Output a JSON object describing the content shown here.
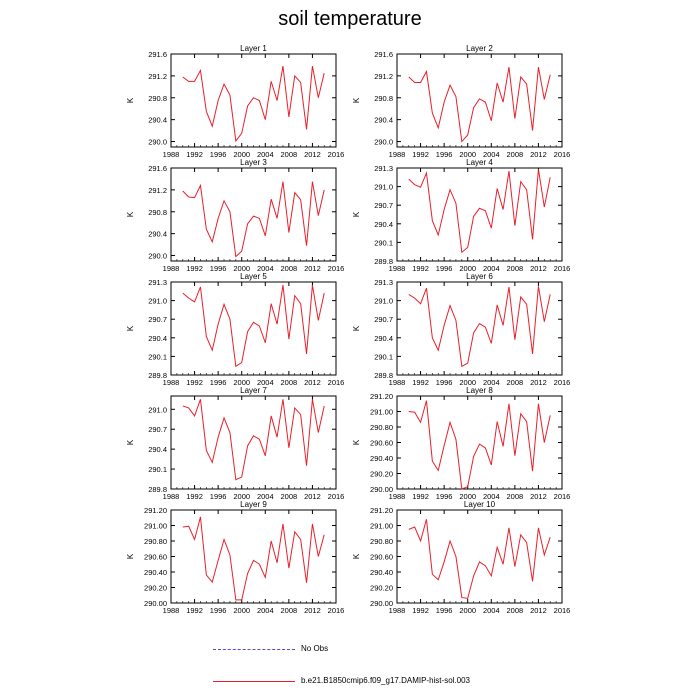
{
  "page": {
    "title": "soil temperature"
  },
  "legend": {
    "items": [
      {
        "label": "No Obs",
        "style": "dashed",
        "color": "#5a4cc2"
      },
      {
        "label": "b.e21.B1850cmip6.f09_g17.DAMIP-hist-sol.003",
        "style": "solid",
        "color": "#e8202a"
      }
    ]
  },
  "colors": {
    "series": "#e8202a",
    "frame": "#000000"
  },
  "chart_data": [
    {
      "type": "line",
      "title": "Layer 1",
      "xlabel": "",
      "ylabel": "K",
      "xlim": [
        1988,
        2016
      ],
      "ylim": [
        289.9,
        291.6
      ],
      "xticks": [
        1988,
        1992,
        1996,
        2000,
        2004,
        2008,
        2012,
        2016
      ],
      "ytick_labels": [
        "290.0",
        "290.4",
        "290.8",
        "291.2",
        "291.6"
      ],
      "x": [
        1990,
        1991,
        1992,
        1993,
        1994,
        1995,
        1996,
        1997,
        1998,
        1999,
        2000,
        2001,
        2002,
        2003,
        2004,
        2005,
        2006,
        2007,
        2008,
        2009,
        2010,
        2011,
        2012,
        2013,
        2014
      ],
      "series": [
        {
          "values": [
            291.18,
            291.1,
            291.1,
            291.3,
            290.55,
            290.28,
            290.75,
            291.05,
            290.85,
            290.01,
            290.15,
            290.65,
            290.8,
            290.75,
            290.4,
            291.1,
            290.75,
            291.38,
            290.45,
            291.2,
            291.08,
            290.22,
            291.38,
            290.8,
            291.25
          ]
        }
      ]
    },
    {
      "type": "line",
      "title": "Layer 2",
      "xlabel": "",
      "ylabel": "K",
      "xlim": [
        1988,
        2016
      ],
      "ylim": [
        289.9,
        291.6
      ],
      "xticks": [
        1988,
        1992,
        1996,
        2000,
        2004,
        2008,
        2012,
        2016
      ],
      "ytick_labels": [
        "290.0",
        "290.4",
        "290.8",
        "291.2",
        "291.6"
      ],
      "x": [
        1990,
        1991,
        1992,
        1993,
        1994,
        1995,
        1996,
        1997,
        1998,
        1999,
        2000,
        2001,
        2002,
        2003,
        2004,
        2005,
        2006,
        2007,
        2008,
        2009,
        2010,
        2011,
        2012,
        2013,
        2014
      ],
      "series": [
        {
          "values": [
            291.18,
            291.08,
            291.08,
            291.28,
            290.52,
            290.25,
            290.72,
            291.03,
            290.82,
            290.0,
            290.12,
            290.62,
            290.78,
            290.72,
            290.38,
            291.07,
            290.72,
            291.36,
            290.42,
            291.18,
            291.05,
            290.2,
            291.36,
            290.77,
            291.22
          ]
        }
      ]
    },
    {
      "type": "line",
      "title": "Layer 3",
      "xlabel": "",
      "ylabel": "K",
      "xlim": [
        1988,
        2016
      ],
      "ylim": [
        289.9,
        291.6
      ],
      "xticks": [
        1988,
        1992,
        1996,
        2000,
        2004,
        2008,
        2012,
        2016
      ],
      "ytick_labels": [
        "290.0",
        "290.4",
        "290.8",
        "291.2",
        "291.6"
      ],
      "x": [
        1990,
        1991,
        1992,
        1993,
        1994,
        1995,
        1996,
        1997,
        1998,
        1999,
        2000,
        2001,
        2002,
        2003,
        2004,
        2005,
        2006,
        2007,
        2008,
        2009,
        2010,
        2011,
        2012,
        2013,
        2014
      ],
      "series": [
        {
          "values": [
            291.18,
            291.07,
            291.06,
            291.28,
            290.48,
            290.25,
            290.68,
            291.0,
            290.8,
            289.98,
            290.08,
            290.58,
            290.72,
            290.68,
            290.36,
            291.03,
            290.68,
            291.35,
            290.42,
            291.15,
            291.02,
            290.18,
            291.35,
            290.73,
            291.2
          ]
        }
      ]
    },
    {
      "type": "line",
      "title": "Layer 4",
      "xlabel": "",
      "ylabel": "K",
      "xlim": [
        1988,
        2016
      ],
      "ylim": [
        289.8,
        291.3
      ],
      "xticks": [
        1988,
        1992,
        1996,
        2000,
        2004,
        2008,
        2012,
        2016
      ],
      "ytick_labels": [
        "289.8",
        "290.1",
        "290.4",
        "290.7",
        "291.0",
        "291.3"
      ],
      "x": [
        1990,
        1991,
        1992,
        1993,
        1994,
        1995,
        1996,
        1997,
        1998,
        1999,
        2000,
        2001,
        2002,
        2003,
        2004,
        2005,
        2006,
        2007,
        2008,
        2009,
        2010,
        2011,
        2012,
        2013,
        2014
      ],
      "series": [
        {
          "values": [
            291.12,
            291.03,
            290.99,
            291.22,
            290.45,
            290.22,
            290.63,
            290.95,
            290.73,
            289.94,
            290.02,
            290.52,
            290.65,
            290.61,
            290.33,
            290.97,
            290.63,
            291.25,
            290.37,
            291.08,
            290.95,
            290.15,
            291.28,
            290.67,
            291.15
          ]
        }
      ]
    },
    {
      "type": "line",
      "title": "Layer 5",
      "xlabel": "",
      "ylabel": "K",
      "xlim": [
        1988,
        2016
      ],
      "ylim": [
        289.8,
        291.3
      ],
      "xticks": [
        1988,
        1992,
        1996,
        2000,
        2004,
        2008,
        2012,
        2016
      ],
      "ytick_labels": [
        "289.8",
        "290.1",
        "290.4",
        "290.7",
        "291.0",
        "291.3"
      ],
      "x": [
        1990,
        1991,
        1992,
        1993,
        1994,
        1995,
        1996,
        1997,
        1998,
        1999,
        2000,
        2001,
        2002,
        2003,
        2004,
        2005,
        2006,
        2007,
        2008,
        2009,
        2010,
        2011,
        2012,
        2013,
        2014
      ],
      "series": [
        {
          "values": [
            291.12,
            291.04,
            290.98,
            291.22,
            290.42,
            290.2,
            290.62,
            290.94,
            290.7,
            289.94,
            290.0,
            290.5,
            290.65,
            290.59,
            290.32,
            290.95,
            290.62,
            291.25,
            290.38,
            291.08,
            290.95,
            290.14,
            291.25,
            290.68,
            291.12
          ]
        }
      ]
    },
    {
      "type": "line",
      "title": "Layer 6",
      "xlabel": "",
      "ylabel": "K",
      "xlim": [
        1988,
        2016
      ],
      "ylim": [
        289.8,
        291.3
      ],
      "xticks": [
        1988,
        1992,
        1996,
        2000,
        2004,
        2008,
        2012,
        2016
      ],
      "ytick_labels": [
        "289.8",
        "290.1",
        "290.4",
        "290.7",
        "291.0",
        "291.3"
      ],
      "x": [
        1990,
        1991,
        1992,
        1993,
        1994,
        1995,
        1996,
        1997,
        1998,
        1999,
        2000,
        2001,
        2002,
        2003,
        2004,
        2005,
        2006,
        2007,
        2008,
        2009,
        2010,
        2011,
        2012,
        2013,
        2014
      ],
      "series": [
        {
          "values": [
            291.1,
            291.04,
            290.95,
            291.2,
            290.4,
            290.2,
            290.6,
            290.92,
            290.68,
            289.94,
            289.99,
            290.48,
            290.63,
            290.57,
            290.31,
            290.93,
            290.6,
            291.22,
            290.37,
            291.06,
            290.94,
            290.14,
            291.23,
            290.66,
            291.1
          ]
        }
      ]
    },
    {
      "type": "line",
      "title": "Layer 7",
      "xlabel": "",
      "ylabel": "K",
      "xlim": [
        1988,
        2016
      ],
      "ylim": [
        289.8,
        291.2
      ],
      "xticks": [
        1988,
        1992,
        1996,
        2000,
        2004,
        2008,
        2012,
        2016
      ],
      "ytick_labels": [
        "289.8",
        "290.1",
        "290.4",
        "290.7",
        "291.0"
      ],
      "x": [
        1990,
        1991,
        1992,
        1993,
        1994,
        1995,
        1996,
        1997,
        1998,
        1999,
        2000,
        2001,
        2002,
        2003,
        2004,
        2005,
        2006,
        2007,
        2008,
        2009,
        2010,
        2011,
        2012,
        2013,
        2014
      ],
      "series": [
        {
          "values": [
            291.05,
            291.02,
            290.9,
            291.15,
            290.38,
            290.2,
            290.58,
            290.87,
            290.65,
            289.94,
            289.98,
            290.45,
            290.6,
            290.55,
            290.3,
            290.9,
            290.58,
            291.15,
            290.42,
            291.02,
            290.92,
            290.15,
            291.15,
            290.65,
            291.05
          ]
        }
      ]
    },
    {
      "type": "line",
      "title": "Layer 8",
      "xlabel": "",
      "ylabel": "K",
      "xlim": [
        1988,
        2016
      ],
      "ylim": [
        290.0,
        291.2
      ],
      "xticks": [
        1988,
        1992,
        1996,
        2000,
        2004,
        2008,
        2012,
        2016
      ],
      "ytick_labels": [
        "290.00",
        "290.20",
        "290.40",
        "290.60",
        "290.80",
        "291.00",
        "291.20"
      ],
      "x": [
        1990,
        1991,
        1992,
        1993,
        1994,
        1995,
        1996,
        1997,
        1998,
        1999,
        2000,
        2001,
        2002,
        2003,
        2004,
        2005,
        2006,
        2007,
        2008,
        2009,
        2010,
        2011,
        2012,
        2013,
        2014
      ],
      "series": [
        {
          "values": [
            291.0,
            290.99,
            290.86,
            291.14,
            290.36,
            290.24,
            290.56,
            290.86,
            290.64,
            290.0,
            290.03,
            290.42,
            290.58,
            290.53,
            290.31,
            290.87,
            290.55,
            291.1,
            290.43,
            290.97,
            290.87,
            290.23,
            291.1,
            290.6,
            290.95
          ]
        }
      ]
    },
    {
      "type": "line",
      "title": "Layer 9",
      "xlabel": "",
      "ylabel": "K",
      "xlim": [
        1988,
        2016
      ],
      "ylim": [
        290.0,
        291.2
      ],
      "xticks": [
        1988,
        1992,
        1996,
        2000,
        2004,
        2008,
        2012,
        2016
      ],
      "ytick_labels": [
        "290.00",
        "290.20",
        "290.40",
        "290.60",
        "290.80",
        "291.00",
        "291.20"
      ],
      "x": [
        1990,
        1991,
        1992,
        1993,
        1994,
        1995,
        1996,
        1997,
        1998,
        1999,
        2000,
        2001,
        2002,
        2003,
        2004,
        2005,
        2006,
        2007,
        2008,
        2009,
        2010,
        2011,
        2012,
        2013,
        2014
      ],
      "series": [
        {
          "values": [
            290.98,
            290.99,
            290.82,
            291.11,
            290.36,
            290.27,
            290.55,
            290.82,
            290.62,
            290.04,
            290.04,
            290.38,
            290.55,
            290.5,
            290.33,
            290.8,
            290.52,
            291.02,
            290.45,
            290.92,
            290.82,
            290.26,
            291.02,
            290.6,
            290.88
          ]
        }
      ]
    },
    {
      "type": "line",
      "title": "Layer 10",
      "xlabel": "",
      "ylabel": "K",
      "xlim": [
        1988,
        2016
      ],
      "ylim": [
        290.0,
        291.2
      ],
      "xticks": [
        1988,
        1992,
        1996,
        2000,
        2004,
        2008,
        2012,
        2016
      ],
      "ytick_labels": [
        "290.00",
        "290.20",
        "290.40",
        "290.60",
        "290.80",
        "291.00",
        "291.20"
      ],
      "x": [
        1990,
        1991,
        1992,
        1993,
        1994,
        1995,
        1996,
        1997,
        1998,
        1999,
        2000,
        2001,
        2002,
        2003,
        2004,
        2005,
        2006,
        2007,
        2008,
        2009,
        2010,
        2011,
        2012,
        2013,
        2014
      ],
      "series": [
        {
          "values": [
            290.95,
            290.98,
            290.8,
            291.08,
            290.37,
            290.3,
            290.53,
            290.8,
            290.6,
            290.07,
            290.06,
            290.35,
            290.53,
            290.48,
            290.35,
            290.72,
            290.5,
            290.97,
            290.47,
            290.88,
            290.78,
            290.28,
            290.97,
            290.62,
            290.85
          ]
        }
      ]
    }
  ]
}
